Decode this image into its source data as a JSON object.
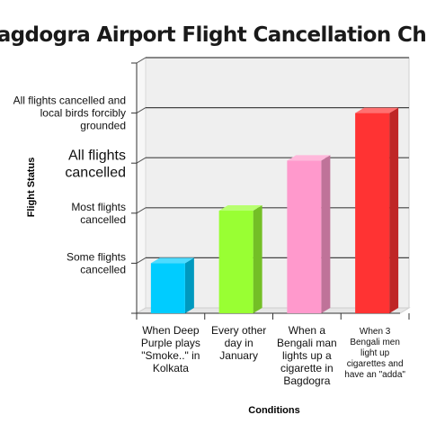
{
  "chart_data": {
    "type": "bar",
    "title": "Bagdogra Airport Flight Cancellation Chart",
    "xlabel": "Conditions",
    "ylabel": "Flight Status",
    "ylim": [
      0,
      5
    ],
    "grid": true,
    "yticks": [
      {
        "value": 1,
        "lines": [
          "Some flights",
          "cancelled"
        ]
      },
      {
        "value": 2,
        "lines": [
          "Most flights",
          "cancelled"
        ]
      },
      {
        "value": 3,
        "lines": [
          "All flights",
          "cancelled"
        ]
      },
      {
        "value": 4,
        "lines": [
          "All flights cancelled and",
          "local birds forcibly",
          "grounded"
        ]
      }
    ],
    "categories": [
      {
        "lines": [
          "When Deep",
          "Purple plays",
          "\"Smoke..\" in",
          "Kolkata"
        ],
        "value": 1.0,
        "color": "#00ccff"
      },
      {
        "lines": [
          "Every other",
          "day in",
          "January"
        ],
        "value": 2.05,
        "color": "#99ff33"
      },
      {
        "lines": [
          "When a",
          "Bengali man",
          "lights up a",
          "cigarette in",
          "Bagdogra"
        ],
        "value": 3.05,
        "color": "#ff99cc"
      },
      {
        "lines": [
          "When 3",
          "Bengali men",
          "light up",
          "cigarettes and",
          "have an \"adda\""
        ],
        "value": 4.0,
        "color": "#ff3333"
      }
    ]
  }
}
